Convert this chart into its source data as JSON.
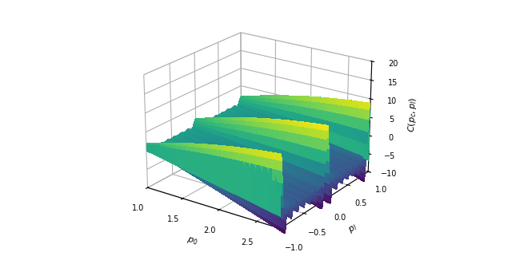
{
  "p0_range": [
    1.0,
    2.8
  ],
  "p1_range": [
    -1.0,
    1.0
  ],
  "p0_ticks": [
    1.0,
    1.5,
    2.0,
    2.5
  ],
  "p1_ticks": [
    -1.0,
    -0.5,
    0.0,
    0.5,
    1.0
  ],
  "z_ticks": [
    -10,
    -5,
    0,
    5,
    10,
    15,
    20
  ],
  "zlim": [
    -10,
    20
  ],
  "xlabel": "p_0",
  "ylabel": "p_l",
  "zlabel": "C(p_c,p_l)",
  "n_p0": 200,
  "n_p1": 200,
  "colormap": "viridis",
  "elev": 22,
  "azim": -55,
  "N_spikes": 25,
  "background_color": "#ffffff"
}
